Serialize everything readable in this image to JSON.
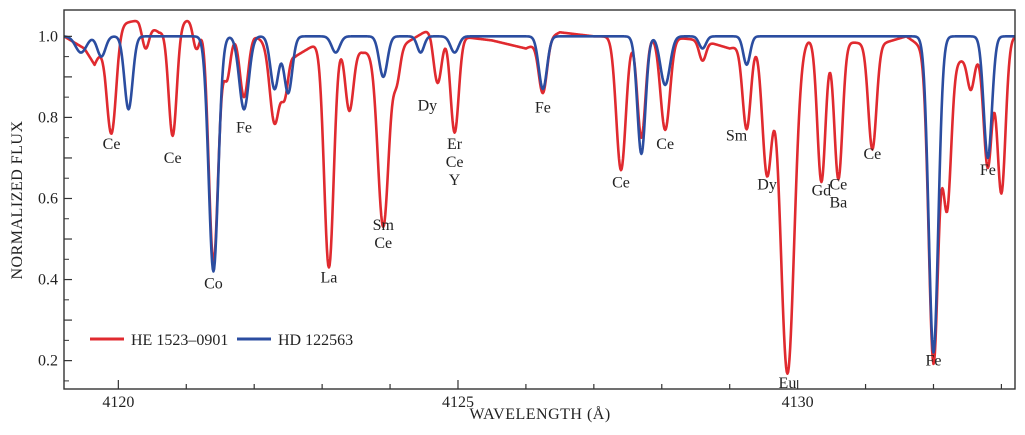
{
  "colors": {
    "red_series": "#e02a2f",
    "blue_series": "#2b4da0",
    "axis": "#333333"
  },
  "chart_data": {
    "type": "line",
    "title": "",
    "xlabel": "WAVELENGTH (Å)",
    "ylabel": "NORMALIZED FLUX",
    "xlim": [
      4119.2,
      4133.2
    ],
    "ylim": [
      0.13,
      1.065
    ],
    "x_ticks": [
      4120,
      4125,
      4130
    ],
    "y_ticks": [
      0.2,
      0.4,
      0.6,
      0.8,
      1.0
    ],
    "y_tick_labels": [
      "0.2",
      "0.4",
      "0.6",
      "0.8",
      "1.0"
    ],
    "grid": false,
    "legend": "bottom-left",
    "series": [
      {
        "name": "HE 1523–0901",
        "color": "#e02a2f",
        "continuum": 1.0,
        "points": [
          [
            4119.2,
            1.0
          ],
          [
            4119.5,
            0.97
          ],
          [
            4119.65,
            0.93
          ],
          [
            4119.8,
            0.99
          ],
          [
            4120.0,
            1.03
          ],
          [
            4120.3,
            1.04
          ],
          [
            4120.6,
            1.01
          ],
          [
            4121.15,
            1.05
          ],
          [
            4121.6,
            1.0
          ],
          [
            4122.0,
            1.0
          ],
          [
            4122.6,
            0.95
          ],
          [
            4123.1,
            1.0
          ],
          [
            4123.6,
            0.96
          ],
          [
            4124.2,
            0.98
          ],
          [
            4124.6,
            1.02
          ],
          [
            4125.0,
            1.0
          ],
          [
            4125.5,
            0.99
          ],
          [
            4126.0,
            0.97
          ],
          [
            4126.5,
            1.01
          ],
          [
            4127.0,
            1.0
          ],
          [
            4128.0,
            1.0
          ],
          [
            4128.6,
            0.99
          ],
          [
            4129.0,
            0.97
          ],
          [
            4129.7,
            1.0
          ],
          [
            4130.4,
            0.99
          ],
          [
            4131.2,
            0.98
          ],
          [
            4131.6,
            1.0
          ],
          [
            4132.2,
            0.93
          ],
          [
            4132.6,
            0.95
          ],
          [
            4133.2,
            1.0
          ]
        ],
        "lines": [
          {
            "x": 4119.9,
            "depth": 0.25,
            "w": 0.07
          },
          {
            "x": 4120.4,
            "depth": 0.06,
            "w": 0.05
          },
          {
            "x": 4120.8,
            "depth": 0.27,
            "w": 0.06
          },
          {
            "x": 4121.15,
            "depth": 0.08,
            "w": 0.05
          },
          {
            "x": 4121.4,
            "depth": 0.58,
            "w": 0.07
          },
          {
            "x": 4121.6,
            "depth": 0.1,
            "w": 0.05
          },
          {
            "x": 4121.85,
            "depth": 0.15,
            "w": 0.06
          },
          {
            "x": 4122.3,
            "depth": 0.19,
            "w": 0.07
          },
          {
            "x": 4122.45,
            "depth": 0.1,
            "w": 0.05
          },
          {
            "x": 4123.1,
            "depth": 0.57,
            "w": 0.07
          },
          {
            "x": 4123.4,
            "depth": 0.16,
            "w": 0.06
          },
          {
            "x": 4123.9,
            "depth": 0.44,
            "w": 0.08
          },
          {
            "x": 4124.1,
            "depth": 0.08,
            "w": 0.05
          },
          {
            "x": 4124.7,
            "depth": 0.13,
            "w": 0.06
          },
          {
            "x": 4124.95,
            "depth": 0.24,
            "w": 0.06
          },
          {
            "x": 4126.25,
            "depth": 0.13,
            "w": 0.06
          },
          {
            "x": 4127.4,
            "depth": 0.33,
            "w": 0.07
          },
          {
            "x": 4127.7,
            "depth": 0.25,
            "w": 0.06
          },
          {
            "x": 4128.05,
            "depth": 0.23,
            "w": 0.07
          },
          {
            "x": 4128.6,
            "depth": 0.05,
            "w": 0.05
          },
          {
            "x": 4129.25,
            "depth": 0.21,
            "w": 0.06
          },
          {
            "x": 4129.55,
            "depth": 0.33,
            "w": 0.07
          },
          {
            "x": 4129.85,
            "depth": 0.83,
            "w": 0.1
          },
          {
            "x": 4130.35,
            "depth": 0.35,
            "w": 0.06
          },
          {
            "x": 4130.6,
            "depth": 0.34,
            "w": 0.06
          },
          {
            "x": 4131.1,
            "depth": 0.26,
            "w": 0.06
          },
          {
            "x": 4132.0,
            "depth": 0.76,
            "w": 0.07
          },
          {
            "x": 4132.2,
            "depth": 0.35,
            "w": 0.06
          },
          {
            "x": 4132.55,
            "depth": 0.08,
            "w": 0.05
          },
          {
            "x": 4132.8,
            "depth": 0.29,
            "w": 0.06
          },
          {
            "x": 4133.0,
            "depth": 0.37,
            "w": 0.06
          }
        ]
      },
      {
        "name": "HD 122563",
        "color": "#2b4da0",
        "continuum": 1.0,
        "points": [
          [
            4119.2,
            1.0
          ],
          [
            4120.0,
            1.0
          ],
          [
            4121.0,
            1.0
          ],
          [
            4122.0,
            1.0
          ],
          [
            4123.0,
            1.0
          ],
          [
            4124.0,
            1.0
          ],
          [
            4125.0,
            1.0
          ],
          [
            4126.0,
            1.0
          ],
          [
            4127.0,
            1.0
          ],
          [
            4128.0,
            1.0
          ],
          [
            4129.0,
            1.0
          ],
          [
            4130.0,
            1.0
          ],
          [
            4131.0,
            1.0
          ],
          [
            4132.0,
            1.0
          ],
          [
            4133.2,
            1.0
          ]
        ],
        "lines": [
          {
            "x": 4119.45,
            "depth": 0.04,
            "w": 0.08
          },
          {
            "x": 4119.75,
            "depth": 0.05,
            "w": 0.06
          },
          {
            "x": 4120.15,
            "depth": 0.18,
            "w": 0.06
          },
          {
            "x": 4121.4,
            "depth": 0.58,
            "w": 0.07
          },
          {
            "x": 4121.85,
            "depth": 0.18,
            "w": 0.07
          },
          {
            "x": 4122.3,
            "depth": 0.13,
            "w": 0.06
          },
          {
            "x": 4122.5,
            "depth": 0.14,
            "w": 0.06
          },
          {
            "x": 4123.2,
            "depth": 0.04,
            "w": 0.06
          },
          {
            "x": 4123.9,
            "depth": 0.1,
            "w": 0.06
          },
          {
            "x": 4124.45,
            "depth": 0.04,
            "w": 0.05
          },
          {
            "x": 4124.95,
            "depth": 0.04,
            "w": 0.06
          },
          {
            "x": 4126.25,
            "depth": 0.13,
            "w": 0.06
          },
          {
            "x": 4127.7,
            "depth": 0.29,
            "w": 0.06
          },
          {
            "x": 4128.05,
            "depth": 0.12,
            "w": 0.07
          },
          {
            "x": 4128.6,
            "depth": 0.03,
            "w": 0.05
          },
          {
            "x": 4129.25,
            "depth": 0.07,
            "w": 0.05
          },
          {
            "x": 4132.0,
            "depth": 0.78,
            "w": 0.07
          },
          {
            "x": 4132.8,
            "depth": 0.3,
            "w": 0.06
          }
        ]
      }
    ],
    "annotations": [
      {
        "text": "Ce",
        "x": 4119.9,
        "y": 0.735
      },
      {
        "text": "Ce",
        "x": 4120.8,
        "y": 0.7
      },
      {
        "text": "Co",
        "x": 4121.4,
        "y": 0.39
      },
      {
        "text": "Fe",
        "x": 4121.85,
        "y": 0.775
      },
      {
        "text": "La",
        "x": 4123.1,
        "y": 0.405
      },
      {
        "text": "Sm",
        "x": 4123.9,
        "y": 0.535
      },
      {
        "text": "Ce",
        "x": 4123.9,
        "y": 0.49
      },
      {
        "text": "Dy",
        "x": 4124.55,
        "y": 0.83
      },
      {
        "text": "Er",
        "x": 4124.95,
        "y": 0.735
      },
      {
        "text": "Ce",
        "x": 4124.95,
        "y": 0.69
      },
      {
        "text": "Y",
        "x": 4124.95,
        "y": 0.645
      },
      {
        "text": "Fe",
        "x": 4126.25,
        "y": 0.825
      },
      {
        "text": "Ce",
        "x": 4127.4,
        "y": 0.64
      },
      {
        "text": "Ce",
        "x": 4128.05,
        "y": 0.735
      },
      {
        "text": "Sm",
        "x": 4129.1,
        "y": 0.755
      },
      {
        "text": "Dy",
        "x": 4129.55,
        "y": 0.635
      },
      {
        "text": "Eu",
        "x": 4129.85,
        "y": 0.145
      },
      {
        "text": "Gd",
        "x": 4130.35,
        "y": 0.62
      },
      {
        "text": "Ce",
        "x": 4130.6,
        "y": 0.635
      },
      {
        "text": "Ba",
        "x": 4130.6,
        "y": 0.59
      },
      {
        "text": "Ce",
        "x": 4131.1,
        "y": 0.71
      },
      {
        "text": "Fe",
        "x": 4132.0,
        "y": 0.2
      },
      {
        "text": "Fe",
        "x": 4132.8,
        "y": 0.67
      }
    ]
  }
}
